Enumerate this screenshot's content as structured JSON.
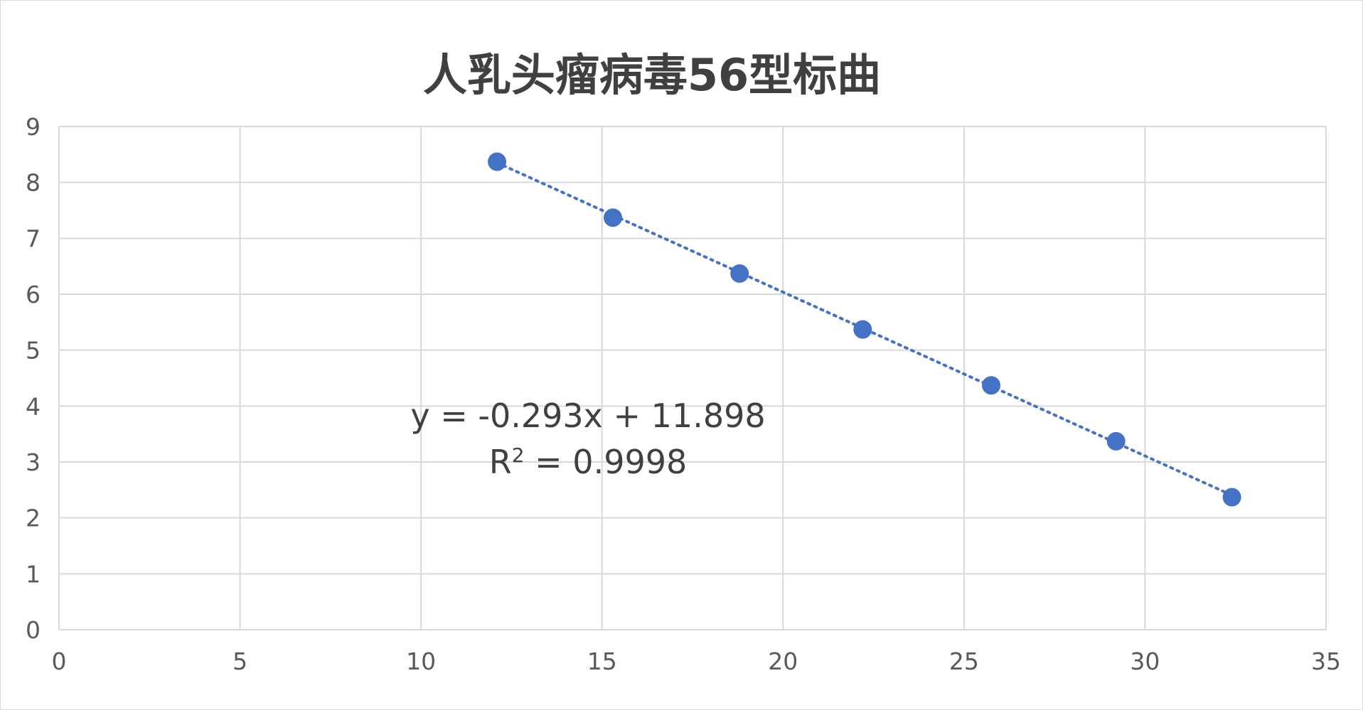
{
  "chart_data": {
    "type": "scatter",
    "title": "人乳头瘤病毒56型标曲",
    "xlabel": "",
    "ylabel": "",
    "xlim": [
      0,
      35
    ],
    "ylim": [
      0,
      9
    ],
    "x_ticks": [
      "0",
      "5",
      "10",
      "15",
      "20",
      "25",
      "30",
      "35"
    ],
    "y_ticks": [
      "0",
      "1",
      "2",
      "3",
      "4",
      "5",
      "6",
      "7",
      "8",
      "9"
    ],
    "grid": true,
    "legend": "none",
    "series": [
      {
        "color": "#4472C4",
        "points": [
          {
            "x": 12.1,
            "y": 8.37
          },
          {
            "x": 15.3,
            "y": 7.37
          },
          {
            "x": 18.8,
            "y": 6.37
          },
          {
            "x": 22.2,
            "y": 5.37
          },
          {
            "x": 25.75,
            "y": 4.37
          },
          {
            "x": 29.2,
            "y": 3.37
          },
          {
            "x": 32.4,
            "y": 2.37
          }
        ],
        "trendline": {
          "type": "linear",
          "style": "dotted",
          "slope": -0.293,
          "intercept": 11.898
        }
      }
    ],
    "annotations": {
      "equation": "y = -0.293x + 11.898",
      "r2_prefix": "R",
      "r2_superscript": "2",
      "r2_value": " = 0.9998"
    }
  }
}
